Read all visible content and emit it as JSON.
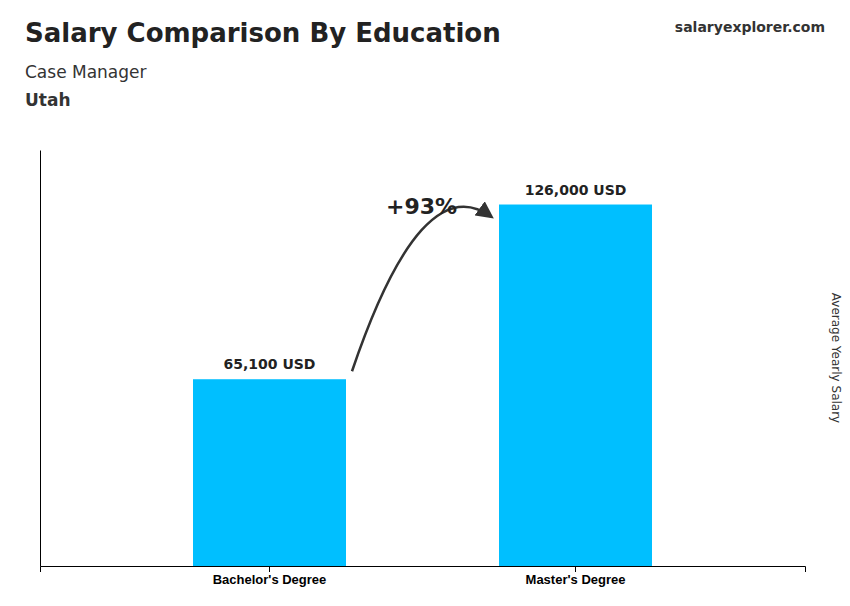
{
  "chart_data": {
    "type": "bar",
    "title": "Salary Comparison By Education",
    "subtitle": "Case Manager",
    "ylabel": "Average Yearly Salary",
    "categories": [
      "Bachelor's Degree",
      "Master's Degree"
    ],
    "values": [
      65100,
      126000
    ],
    "value_labels": [
      "65,100 USD",
      "126,000 USD"
    ],
    "data_labels": true,
    "color": "#00BFFF",
    "ylim": [
      0,
      145000
    ],
    "tick_labels": "x",
    "annotations": [
      "Utah",
      "+93%",
      "salaryexplorer.com"
    ]
  }
}
